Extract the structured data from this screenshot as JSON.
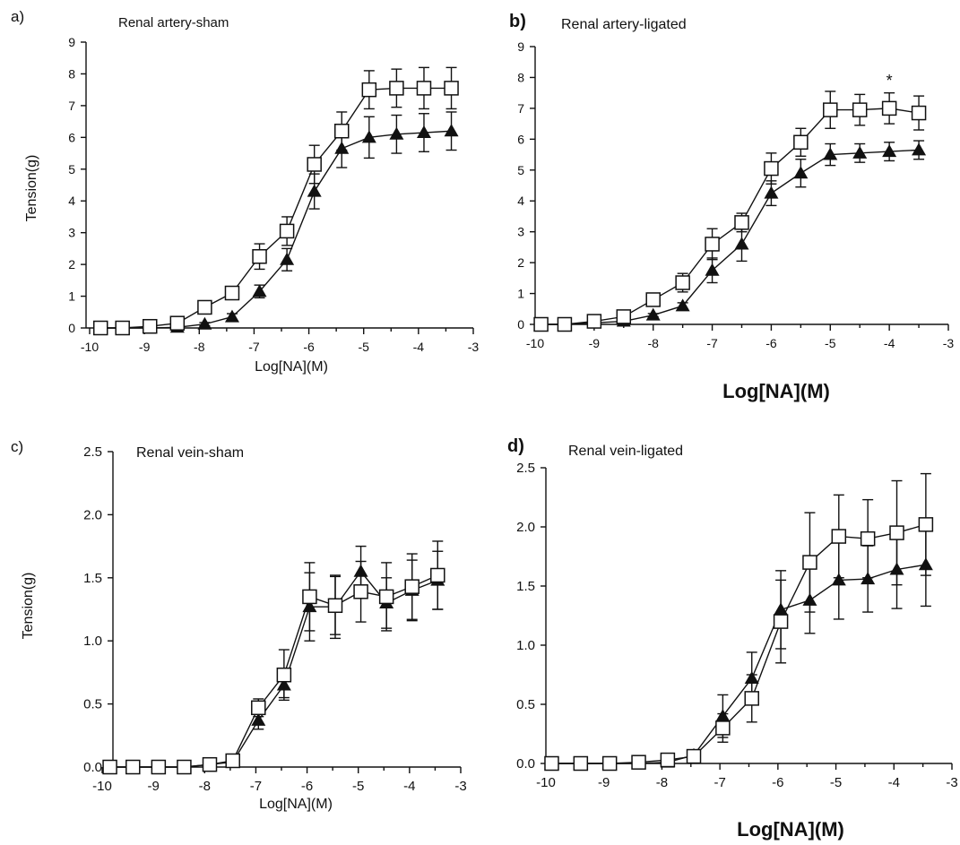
{
  "figure": {
    "panels": [
      {
        "letter": "a)",
        "title": "Renal artery-sham",
        "ylabel": "Tension(g)",
        "xlabel": "Log[NA](M)"
      },
      {
        "letter": "b)",
        "title": "Renal artery-ligated",
        "ylabel": "",
        "xlabel": "Log[NA](M)",
        "annotation": "*"
      },
      {
        "letter": "c)",
        "title": "Renal vein-sham",
        "ylabel": "Tension(g)",
        "xlabel": "Log[NA](M)"
      },
      {
        "letter": "d)",
        "title": "Renal vein-ligated",
        "ylabel": "",
        "xlabel": "Log[NA](M)"
      }
    ]
  },
  "chart_data": [
    {
      "type": "line",
      "title": "Renal artery-sham",
      "xlabel": "Log[NA](M)",
      "ylabel": "Tension(g)",
      "xlim": [
        -10,
        -3
      ],
      "ylim": [
        0,
        9
      ],
      "xticks": [
        "-10",
        "-9",
        "-8",
        "-7",
        "-6",
        "-5",
        "-4",
        "-3"
      ],
      "yticks": [
        "0",
        "1",
        "2",
        "3",
        "4",
        "5",
        "6",
        "7",
        "8",
        "9"
      ],
      "x": [
        -9.8,
        -9.4,
        -8.9,
        -8.4,
        -7.9,
        -7.4,
        -6.9,
        -6.4,
        -5.9,
        -5.4,
        -4.9,
        -4.4,
        -3.9,
        -3.4
      ],
      "series": [
        {
          "marker": "open-square",
          "values": [
            0,
            0,
            0.05,
            0.15,
            0.65,
            1.1,
            2.25,
            3.05,
            5.15,
            6.2,
            7.5,
            7.55,
            7.55,
            7.55
          ],
          "errors": [
            0,
            0,
            0,
            0.05,
            0.1,
            0.15,
            0.4,
            0.45,
            0.6,
            0.6,
            0.6,
            0.6,
            0.65,
            0.65
          ]
        },
        {
          "marker": "filled-triangle",
          "values": [
            0,
            0,
            0,
            0.02,
            0.12,
            0.35,
            1.15,
            2.15,
            4.3,
            5.65,
            6.0,
            6.1,
            6.15,
            6.2
          ],
          "errors": [
            0,
            0,
            0,
            0,
            0.05,
            0.1,
            0.2,
            0.35,
            0.55,
            0.6,
            0.65,
            0.6,
            0.6,
            0.6
          ]
        }
      ]
    },
    {
      "type": "line",
      "title": "Renal artery-ligated",
      "xlabel": "Log[NA](M)",
      "ylabel": "",
      "xlim": [
        -10,
        -3
      ],
      "ylim": [
        0,
        9
      ],
      "xticks": [
        "-10",
        "-9",
        "-8",
        "-7",
        "-6",
        "-5",
        "-4",
        "-3"
      ],
      "yticks": [
        "0",
        "1",
        "2",
        "3",
        "4",
        "5",
        "6",
        "7",
        "8",
        "9"
      ],
      "x": [
        -9.9,
        -9.5,
        -9.0,
        -8.5,
        -8.0,
        -7.5,
        -7.0,
        -6.5,
        -6.0,
        -5.5,
        -5.0,
        -4.5,
        -4.0,
        -3.5
      ],
      "annotation": {
        "text": "*",
        "x": -4.0,
        "y": 7.9
      },
      "series": [
        {
          "marker": "open-square",
          "values": [
            0,
            0,
            0.1,
            0.25,
            0.8,
            1.35,
            2.6,
            3.3,
            5.05,
            5.9,
            6.95,
            6.95,
            7.0,
            6.85
          ],
          "errors": [
            0,
            0,
            0.05,
            0.05,
            0.2,
            0.3,
            0.5,
            0.3,
            0.5,
            0.45,
            0.6,
            0.5,
            0.5,
            0.55
          ]
        },
        {
          "marker": "filled-triangle",
          "values": [
            0,
            0,
            0.05,
            0.1,
            0.3,
            0.6,
            1.75,
            2.6,
            4.25,
            4.9,
            5.5,
            5.55,
            5.6,
            5.65
          ],
          "errors": [
            0,
            0,
            0,
            0,
            0.05,
            0.1,
            0.4,
            0.55,
            0.4,
            0.45,
            0.35,
            0.3,
            0.3,
            0.3
          ]
        }
      ]
    },
    {
      "type": "line",
      "title": "Renal vein-sham",
      "xlabel": "Log[NA](M)",
      "ylabel": "Tension(g)",
      "xlim": [
        -10,
        -3
      ],
      "ylim": [
        0,
        2.5
      ],
      "xticks": [
        "-10",
        "-9",
        "-8",
        "-7",
        "-6",
        "-5",
        "-4",
        "-3"
      ],
      "yticks": [
        "0.0",
        "0.5",
        "1.0",
        "1.5",
        "2.0",
        "2.5"
      ],
      "x": [
        -9.85,
        -9.4,
        -8.9,
        -8.4,
        -7.9,
        -7.45,
        -6.95,
        -6.45,
        -5.95,
        -5.45,
        -4.95,
        -4.45,
        -3.95,
        -3.45
      ],
      "series": [
        {
          "marker": "open-square",
          "values": [
            0,
            0,
            0,
            0,
            0.02,
            0.05,
            0.47,
            0.73,
            1.35,
            1.28,
            1.39,
            1.35,
            1.43,
            1.52
          ],
          "errors": [
            0,
            0,
            0,
            0,
            0.02,
            0.04,
            0.07,
            0.2,
            0.27,
            0.23,
            0.24,
            0.27,
            0.26,
            0.27
          ]
        },
        {
          "marker": "filled-triangle",
          "values": [
            0,
            0,
            0,
            0,
            0.02,
            0.04,
            0.37,
            0.65,
            1.27,
            1.27,
            1.55,
            1.3,
            1.4,
            1.48
          ],
          "errors": [
            0,
            0,
            0,
            0,
            0.01,
            0.02,
            0.07,
            0.1,
            0.27,
            0.25,
            0.2,
            0.2,
            0.24,
            0.23
          ]
        }
      ]
    },
    {
      "type": "line",
      "title": "Renal vein-ligated",
      "xlabel": "Log[NA](M)",
      "ylabel": "",
      "xlim": [
        -10,
        -3
      ],
      "ylim": [
        0,
        2.5
      ],
      "xticks": [
        "-10",
        "-9",
        "-8",
        "-7",
        "-6",
        "-5",
        "-4",
        "-3"
      ],
      "yticks": [
        "0.0",
        "0.5",
        "1.0",
        "1.5",
        "2.0",
        "2.5"
      ],
      "x": [
        -9.9,
        -9.4,
        -8.9,
        -8.4,
        -7.9,
        -7.45,
        -6.95,
        -6.45,
        -5.95,
        -5.45,
        -4.95,
        -4.45,
        -3.95,
        -3.45
      ],
      "series": [
        {
          "marker": "open-square",
          "values": [
            0,
            0,
            0,
            0.01,
            0.03,
            0.06,
            0.3,
            0.55,
            1.2,
            1.7,
            1.92,
            1.9,
            1.95,
            2.02
          ],
          "errors": [
            0,
            0,
            0,
            0.01,
            0.02,
            0.04,
            0.12,
            0.2,
            0.35,
            0.42,
            0.35,
            0.33,
            0.44,
            0.43
          ]
        },
        {
          "marker": "filled-triangle",
          "values": [
            0,
            0,
            0,
            0,
            0.01,
            0.07,
            0.4,
            0.72,
            1.3,
            1.38,
            1.55,
            1.56,
            1.64,
            1.68
          ],
          "errors": [
            0,
            0,
            0,
            0,
            0.01,
            0.03,
            0.18,
            0.22,
            0.33,
            0.28,
            0.33,
            0.28,
            0.33,
            0.35
          ]
        }
      ]
    }
  ]
}
